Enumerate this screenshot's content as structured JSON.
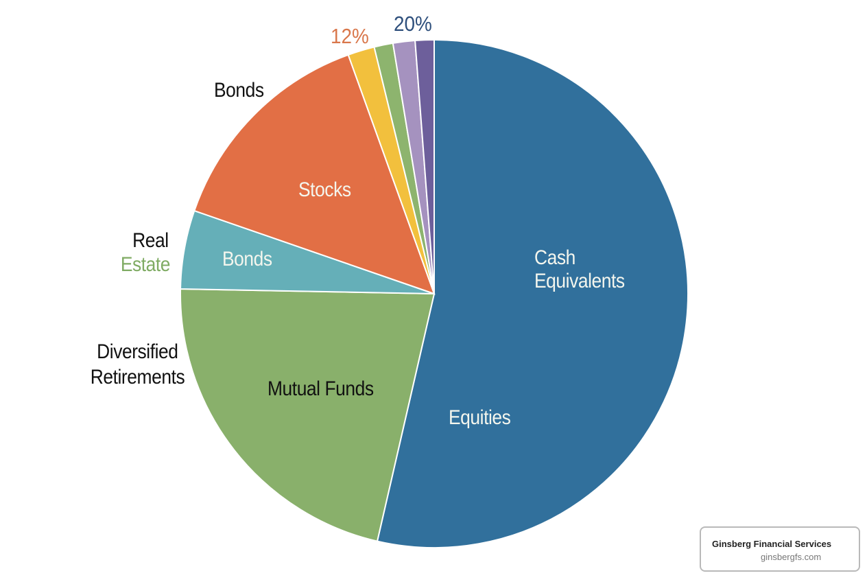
{
  "chart_data": {
    "type": "pie",
    "title": "",
    "start_angle_deg": 0,
    "direction": "clockwise",
    "slices": [
      {
        "label": "Cash Equivalents / Equities",
        "value": 53.6,
        "color": "#31709c"
      },
      {
        "label": "Mutual Funds",
        "value": 21.7,
        "color": "#89b06b"
      },
      {
        "label": "Bonds",
        "value": 5.0,
        "color": "#65afb8"
      },
      {
        "label": "Stocks",
        "value": 14.2,
        "color": "#e26f45"
      },
      {
        "label": "",
        "value": 1.7,
        "color": "#f2c03d"
      },
      {
        "label": "",
        "value": 1.2,
        "color": "#8db46e"
      },
      {
        "label": "",
        "value": 1.4,
        "color": "#a592bf"
      },
      {
        "label": "",
        "value": 1.2,
        "color": "#6d5f9b"
      }
    ],
    "inner_labels": [
      "Cash",
      "Equivalents",
      "Equities",
      "Mutual Funds",
      "Bonds",
      "Stocks"
    ],
    "outer_labels": [
      "Bonds",
      "Real",
      "Estate",
      "Diversified",
      "Retirements"
    ],
    "annotations": [
      {
        "text": "12%",
        "color": "#d9774b"
      },
      {
        "text": "20%",
        "color": "#2e4f7c"
      }
    ]
  },
  "labels": {
    "cash": "Cash",
    "equivalents": "Equivalents",
    "equities": "Equities",
    "mutual_funds": "Mutual Funds",
    "bonds_inner": "Bonds",
    "stocks": "Stocks",
    "bonds_outer": "Bonds",
    "real": "Real",
    "estate": "Estate",
    "diversified": "Diversified",
    "retirements": "Retirements",
    "pct_12": "12%",
    "pct_20": "20%"
  },
  "colors": {
    "estate": "#7fab63",
    "pct_12": "#d9774b",
    "pct_20": "#2e4f7c"
  },
  "brand": {
    "name": "Ginsberg Financial Services",
    "url": "ginsbergfs.com"
  }
}
